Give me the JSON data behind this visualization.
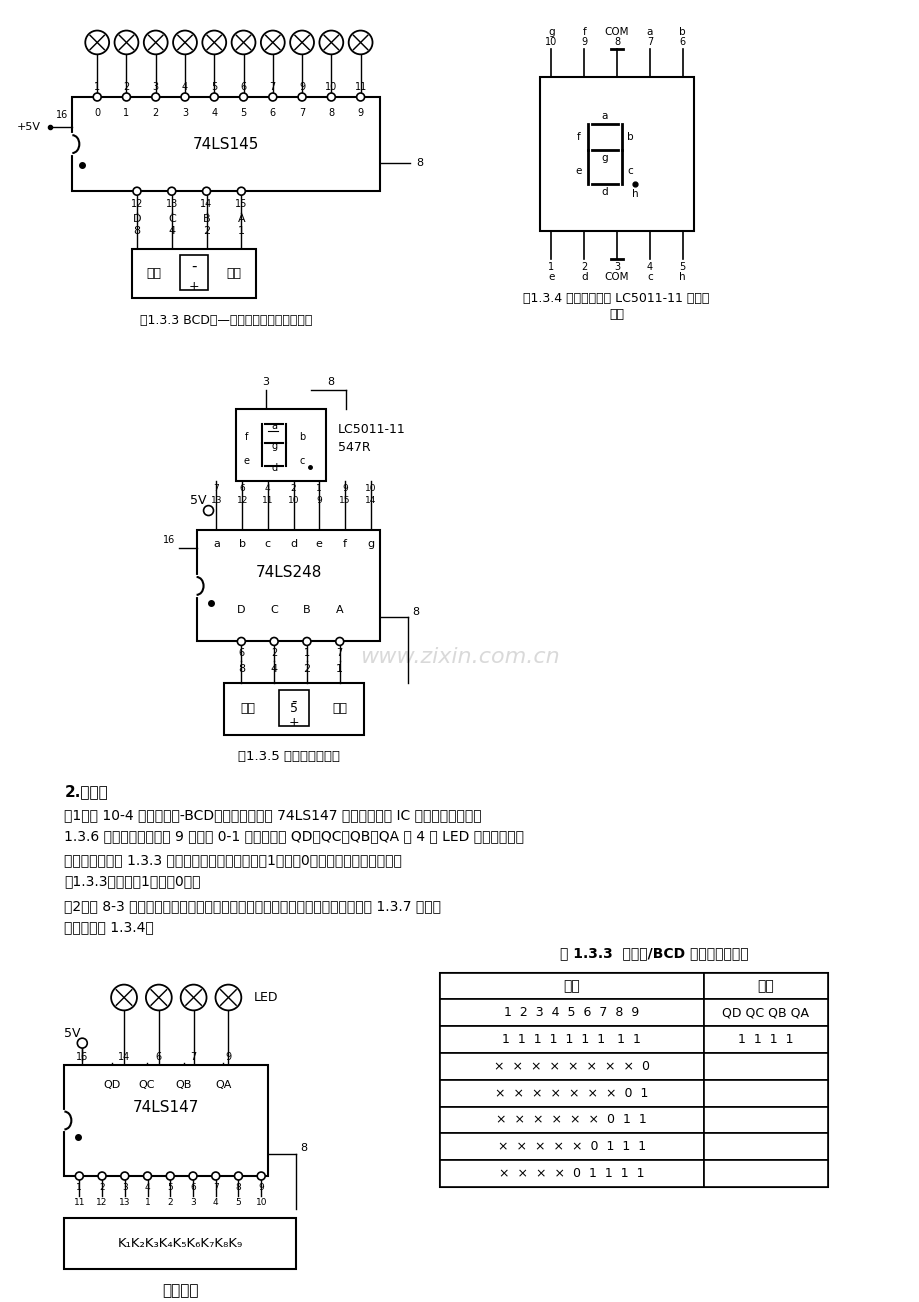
{
  "bg_color": "#ffffff",
  "page_width": 9.2,
  "page_height": 13.02,
  "watermark": "www.zixin.com.cn",
  "fig133_caption": "图1.3.3 BCD码—十进制译码器实验线路图",
  "fig134_caption_1": "图1.3.4 共阴极数码管 LC5011-11 管脚排",
  "fig134_caption_2": "列图",
  "fig135_caption": "图1.3.5 译码显示实验图",
  "section2_title": "2.编码器",
  "para1_1": "（1）将 10-4 线（十进制-BCD码）优先编码器 74LS147 插入实验系统 IC 空插座中，按照图",
  "para1_2": "1.3.6 接线，其中输入接 9 位逻辑 0-1 开关，输出 QD、QC、QB、QA 接 4 个 LED 发光二极管。",
  "para2_1": "接通电源，按表 1.3.3 输入各逻辑电平（开关开为1、关为0），观察输出结果并填入",
  "para2_2": "表1.3.3中（亮为1，灭为0）。",
  "para3_1": "（2）将 8-3 线八进制优先编码器按上述同样方法进行实验论证。其接线图如图 1.3.7 所示。",
  "para3_2": "功能表见表 1.3.4。",
  "table133_title": "表 1.3.3  十进制/BCD 码编码器功能表",
  "col_in": "输入",
  "col_out": "输出",
  "col_in_nums": "1  2  3  4  5  6  7  8  9",
  "col_out_labels": "QD QC QB QA",
  "table_rows": [
    [
      "1  1  1  1  1  1  1   1  1",
      "1  1  1  1"
    ],
    [
      "x  x  x  x  x  x  x  x  0",
      ""
    ],
    [
      "x  x  x  x  x  x  x  0  1",
      ""
    ],
    [
      "x  x  x  x  x  x  0  1  1",
      ""
    ],
    [
      "x  x  x  x  x  0  1  1  1",
      ""
    ],
    [
      "x  x  x  x  0  1  1  1  1",
      ""
    ]
  ],
  "sw_label_dial": "拨码",
  "sw_label_switch": "开关",
  "logic_switch_label": "逻辑开关"
}
